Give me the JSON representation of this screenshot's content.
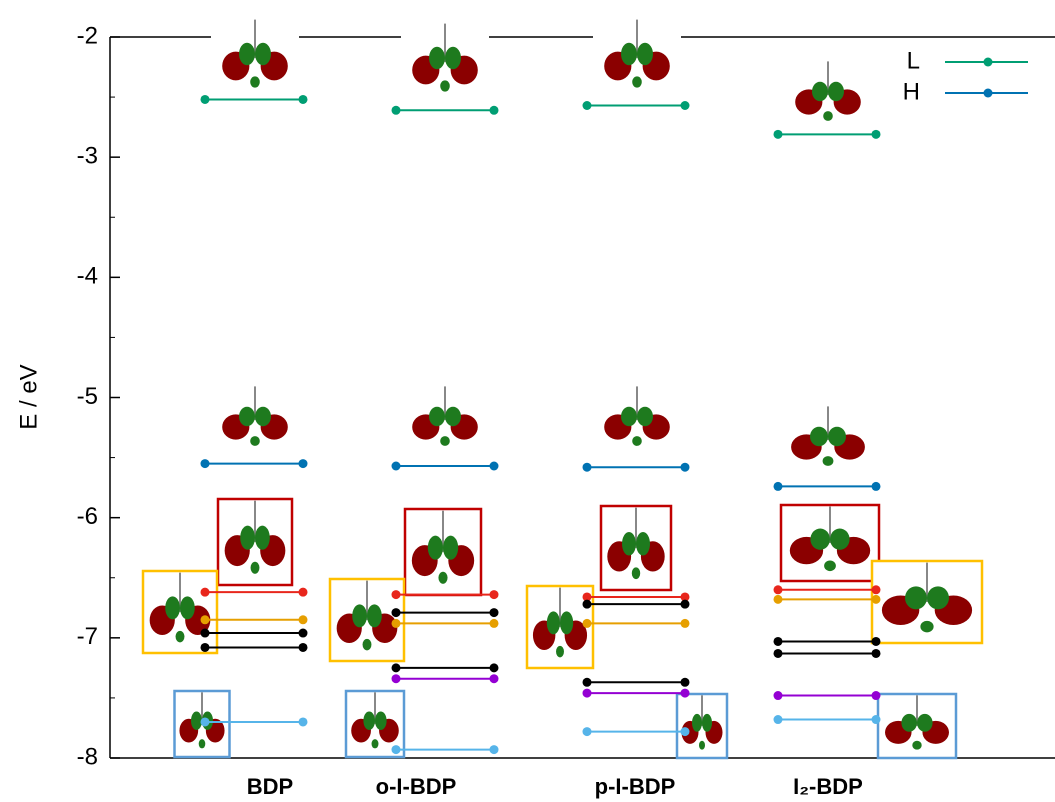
{
  "chart_data": {
    "type": "levels",
    "ylabel": "E / eV",
    "categories": [
      "BDP",
      "o-I-BDP",
      "p-I-BDP",
      "I₂-BDP"
    ],
    "ylim": [
      -8,
      -2
    ],
    "yticks": [
      -8,
      -7,
      -6,
      -5,
      -4,
      -3,
      -2
    ],
    "legend": "top-right",
    "series": [
      {
        "name": "L",
        "color": "#009e73",
        "values": [
          -2.52,
          -2.61,
          -2.57,
          -2.81
        ]
      },
      {
        "name": "H",
        "color": "#0072b2",
        "values": [
          -5.55,
          -5.57,
          -5.58,
          -5.74
        ]
      },
      {
        "color": "#e8261c",
        "values": [
          -6.62,
          -6.64,
          -6.66,
          -6.6
        ]
      },
      {
        "color": "#e69f00",
        "values": [
          -6.85,
          -6.88,
          -6.88,
          -6.68
        ]
      },
      {
        "color": "#000000",
        "values": [
          -6.96,
          -6.79,
          -6.72,
          -7.03
        ]
      },
      {
        "color": "#000000",
        "values": [
          -7.08,
          -7.25,
          -7.37,
          -7.13
        ]
      },
      {
        "color": "#9400d3",
        "values": [
          null,
          -7.34,
          -7.46,
          -7.48
        ]
      },
      {
        "color": "#56b4e9",
        "values": [
          -7.7,
          -7.93,
          -7.78,
          -7.68
        ]
      }
    ]
  }
}
